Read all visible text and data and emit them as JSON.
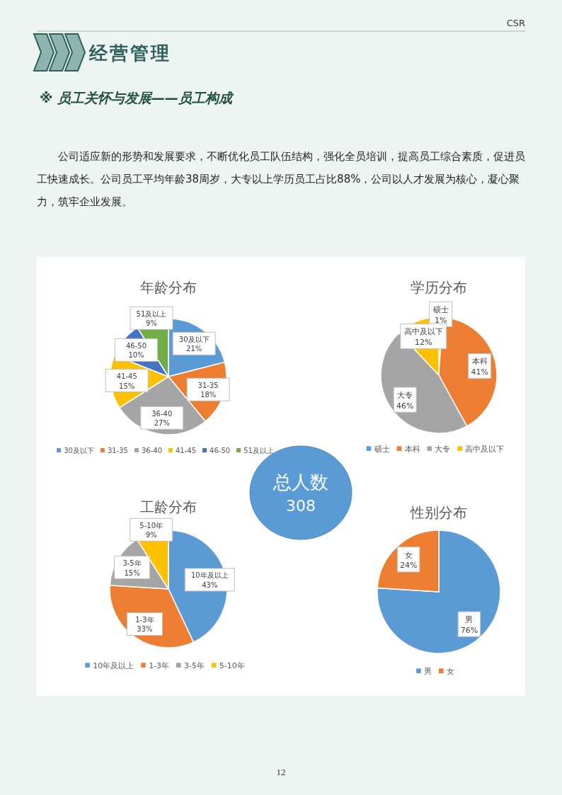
{
  "chart_data": [
    {
      "type": "other",
      "title": "经营管理",
      "subtitle": "※ 员工关怀与发展——员工构成",
      "annotations": [
        "CSR",
        "公司适应新的形势和发展要求，不断优化员工队伍结构，强化全员培训，提高员工综合素质，促进员工快速成长。公司员工平均年龄38周岁，大专以上学历员工占比88%，公司以人才发展为核心，凝心聚力，筑牢企业发展。",
        "12"
      ]
    },
    {
      "type": "pie",
      "title": "年龄分布",
      "categories": [
        "30及以下",
        "31-35",
        "36-40",
        "41-45",
        "46-50",
        "51及以上"
      ],
      "values": [
        21,
        18,
        27,
        15,
        10,
        9
      ],
      "value_labels": [
        "21%",
        "18%",
        "27%",
        "15%",
        "10%",
        "9%"
      ],
      "colors": [
        "#5b9bd5",
        "#ed7d31",
        "#a5a5a5",
        "#ffc000",
        "#4472c4",
        "#70ad47"
      ],
      "legend": "bottom"
    },
    {
      "type": "pie",
      "title": "学历分布",
      "categories": [
        "硕士",
        "本科",
        "大专",
        "高中及以下"
      ],
      "values": [
        1,
        41,
        46,
        12
      ],
      "value_labels": [
        "1%",
        "41%",
        "46%",
        "12%"
      ],
      "colors": [
        "#5b9bd5",
        "#ed7d31",
        "#a5a5a5",
        "#ffc000"
      ],
      "legend": "bottom"
    },
    {
      "type": "other",
      "title": "总人数",
      "annotations": [
        "308"
      ]
    },
    {
      "type": "pie",
      "title": "工龄分布",
      "categories": [
        "10年及以上",
        "1-3年",
        "3-5年",
        "5-10年"
      ],
      "values": [
        43,
        33,
        15,
        9
      ],
      "value_labels": [
        "43%",
        "33%",
        "15%",
        "9%"
      ],
      "colors": [
        "#5b9bd5",
        "#ed7d31",
        "#a5a5a5",
        "#ffc000"
      ],
      "legend": "bottom"
    },
    {
      "type": "pie",
      "title": "性别分布",
      "categories": [
        "男",
        "女"
      ],
      "values": [
        76,
        24
      ],
      "value_labels": [
        "76%",
        "24%"
      ],
      "colors": [
        "#5b9bd5",
        "#ed7d31"
      ],
      "legend": "bottom"
    }
  ]
}
